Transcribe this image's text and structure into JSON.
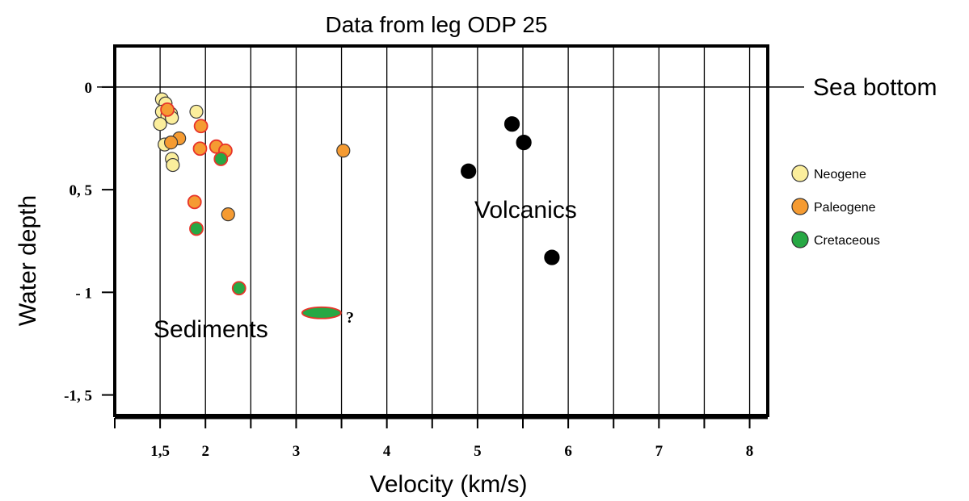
{
  "chart_data": {
    "type": "scatter",
    "title": "Data from leg ODP 25",
    "xlabel": "Velocity (km/s)",
    "ylabel": "Water depth",
    "xlim": [
      1.0,
      8.2
    ],
    "ylim": [
      -1.6,
      0.2
    ],
    "x_ticks": [
      {
        "value": 1.5,
        "label": "1,5"
      },
      {
        "value": 2,
        "label": "2"
      },
      {
        "value": 3,
        "label": "3"
      },
      {
        "value": 4,
        "label": "4"
      },
      {
        "value": 5,
        "label": "5"
      },
      {
        "value": 6,
        "label": "6"
      },
      {
        "value": 7,
        "label": "7"
      },
      {
        "value": 8,
        "label": "8"
      }
    ],
    "y_ticks": [
      {
        "value": 0,
        "label": "0"
      },
      {
        "value": -0.5,
        "label": "0, 5"
      },
      {
        "value": -1,
        "label": "- 1"
      },
      {
        "value": -1.5,
        "label": "-1, 5"
      }
    ],
    "vertical_gridlines": [
      1.5,
      2,
      2.5,
      3,
      3.5,
      4,
      4.5,
      5,
      5.5,
      6,
      6.5,
      7,
      7.5,
      8
    ],
    "grid": true,
    "legend_position": "right",
    "colors": {
      "Neogene": "#fbee9c",
      "Paleogene": "#f59b32",
      "Cretaceous": "#27a844",
      "Volcanics": "#000000",
      "red_outline": "#e8342a"
    },
    "series": [
      {
        "name": "Neogene",
        "points": [
          {
            "x": 1.52,
            "y": -0.06
          },
          {
            "x": 1.56,
            "y": -0.08
          },
          {
            "x": 1.52,
            "y": -0.12
          },
          {
            "x": 1.58,
            "y": -0.14
          },
          {
            "x": 1.62,
            "y": -0.13
          },
          {
            "x": 1.5,
            "y": -0.18
          },
          {
            "x": 1.63,
            "y": -0.15
          },
          {
            "x": 1.9,
            "y": -0.12
          },
          {
            "x": 1.55,
            "y": -0.28
          },
          {
            "x": 1.63,
            "y": -0.35
          },
          {
            "x": 1.64,
            "y": -0.38
          }
        ]
      },
      {
        "name": "Paleogene",
        "points": [
          {
            "x": 1.58,
            "y": -0.11,
            "outline": "red"
          },
          {
            "x": 1.95,
            "y": -0.19,
            "outline": "red"
          },
          {
            "x": 1.71,
            "y": -0.25
          },
          {
            "x": 1.62,
            "y": -0.27
          },
          {
            "x": 1.94,
            "y": -0.3,
            "outline": "red"
          },
          {
            "x": 2.12,
            "y": -0.29,
            "outline": "red"
          },
          {
            "x": 2.22,
            "y": -0.31,
            "outline": "red"
          },
          {
            "x": 3.52,
            "y": -0.31
          },
          {
            "x": 1.88,
            "y": -0.56,
            "outline": "red"
          },
          {
            "x": 2.25,
            "y": -0.62
          }
        ]
      },
      {
        "name": "Cretaceous",
        "points": [
          {
            "x": 2.17,
            "y": -0.35,
            "outline": "red"
          },
          {
            "x": 1.9,
            "y": -0.69,
            "outline": "red"
          },
          {
            "x": 2.37,
            "y": -0.98,
            "outline": "red"
          },
          {
            "x": 3.28,
            "y": -1.1,
            "shape": "ellipse",
            "outline": "red"
          }
        ]
      },
      {
        "name": "Volcanics",
        "points": [
          {
            "x": 5.38,
            "y": -0.18
          },
          {
            "x": 5.51,
            "y": -0.27
          },
          {
            "x": 4.9,
            "y": -0.41
          },
          {
            "x": 5.82,
            "y": -0.83
          }
        ]
      }
    ],
    "legend": [
      {
        "label": "Neogene",
        "color": "#fbee9c"
      },
      {
        "label": "Paleogene",
        "color": "#f59b32"
      },
      {
        "label": "Cretaceous",
        "color": "#27a844"
      }
    ],
    "annotations": {
      "sea_bottom": "Sea bottom",
      "volcanics": "Volcanics",
      "sediments": "Sediments",
      "question": "?"
    }
  }
}
